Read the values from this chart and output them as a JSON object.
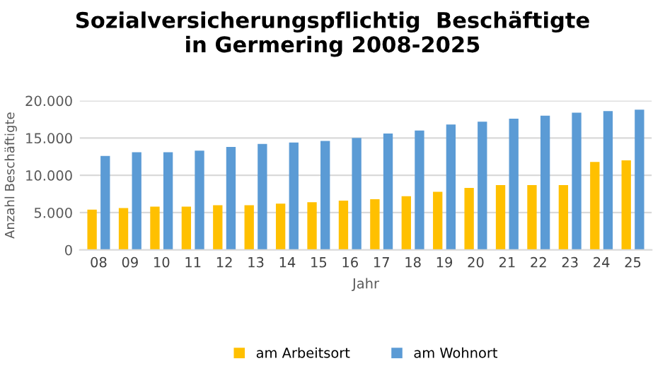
{
  "chart_data": {
    "type": "bar",
    "title": "Sozialversicherungspflichtig  Beschäftigte\nin Germering 2008-2025",
    "xlabel": "Jahr",
    "ylabel": "Anzahl Beschäftigte",
    "categories": [
      "08",
      "09",
      "10",
      "11",
      "12",
      "13",
      "14",
      "15",
      "16",
      "17",
      "18",
      "19",
      "20",
      "21",
      "22",
      "23",
      "24",
      "25"
    ],
    "series": [
      {
        "name": "am Arbeitsort",
        "color": "#ffc000",
        "values": [
          5400,
          5600,
          5800,
          5800,
          6000,
          6000,
          6200,
          6400,
          6600,
          6800,
          7200,
          7800,
          8300,
          8700,
          8700,
          8700,
          11800,
          12000
        ]
      },
      {
        "name": "am Wohnort",
        "color": "#5b9bd5",
        "values": [
          12600,
          13100,
          13100,
          13300,
          13800,
          14200,
          14400,
          14600,
          15000,
          15600,
          16000,
          16800,
          17200,
          17600,
          18000,
          18400,
          18600,
          18800
        ]
      }
    ],
    "ylim": [
      0,
      20000
    ],
    "yticks": [
      {
        "value": 0,
        "label": "0"
      },
      {
        "value": 5000,
        "label": "5.000"
      },
      {
        "value": 10000,
        "label": "10.000"
      },
      {
        "value": 15000,
        "label": "15.000"
      },
      {
        "value": 20000,
        "label": "20.000"
      }
    ],
    "grid": "y",
    "legend": "bottom"
  }
}
